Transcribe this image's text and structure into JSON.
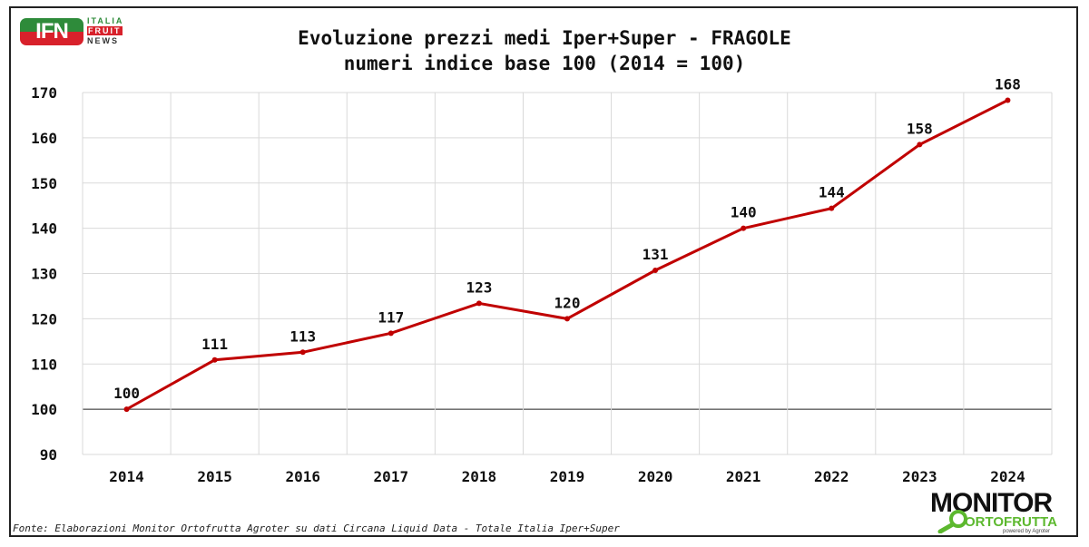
{
  "header": {
    "logo_text": "IFN",
    "logo_lines": [
      "ITALIA",
      "FRUIT",
      "NEWS"
    ]
  },
  "chart_data": {
    "type": "line",
    "title": "Evoluzione prezzi medi Iper+Super - FRAGOLE",
    "subtitle": "numeri indice base 100 (2014 = 100)",
    "categories": [
      "2014",
      "2015",
      "2016",
      "2017",
      "2018",
      "2019",
      "2020",
      "2021",
      "2022",
      "2023",
      "2024"
    ],
    "series": [
      {
        "name": "FRAGOLE",
        "color": "#c00000",
        "values": [
          100,
          110.9,
          112.6,
          116.8,
          123.4,
          120,
          130.7,
          140,
          144.4,
          158.5,
          168.3
        ],
        "labels": [
          "100",
          "111",
          "113",
          "117",
          "123",
          "120",
          "131",
          "140",
          "144",
          "158",
          "168"
        ]
      }
    ],
    "ylim": [
      90,
      170
    ],
    "yticks": [
      "90",
      "100",
      "110",
      "120",
      "130",
      "140",
      "150",
      "160",
      "170"
    ],
    "reference_line": 100,
    "grid": true,
    "xlabel": "",
    "ylabel": ""
  },
  "footer": {
    "source": "Fonte: Elaborazioni Monitor Ortofrutta Agroter su dati Circana Liquid Data - Totale Italia Iper+Super"
  },
  "brand": {
    "line1": "MONITOR",
    "line2": "ORTOFRUTTA",
    "line3": "powered by Agroter"
  }
}
